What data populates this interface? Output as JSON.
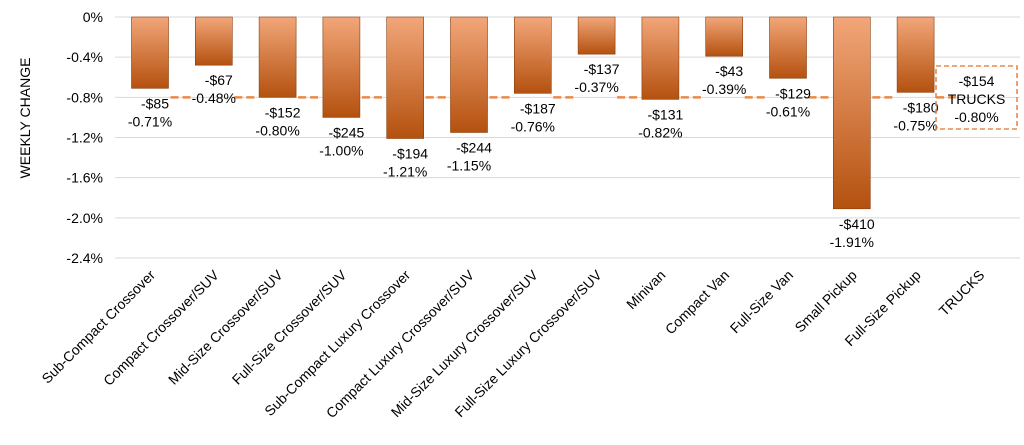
{
  "chart_data": {
    "type": "bar",
    "ylabel": "WEEKLY CHANGE",
    "ylim": [
      -2.4,
      0
    ],
    "yticks": [
      "0%",
      "-0.4%",
      "-0.8%",
      "-1.2%",
      "-1.6%",
      "-2.0%",
      "-2.4%"
    ],
    "ytick_values": [
      0,
      -0.4,
      -0.8,
      -1.2,
      -1.6,
      -2.0,
      -2.4
    ],
    "grid": true,
    "categories": [
      "Sub-Compact Crossover",
      "Compact Crossover/SUV",
      "Mid-Size Crossover/SUV",
      "Full-Size Crossover/SUV",
      "Sub-Compact Luxury Crossover",
      "Compact Luxury Crossover/SUV",
      "Mid-Size Luxury Crossover/SUV",
      "Full-Size Luxury Crossover/SUV",
      "Minivan",
      "Compact Van",
      "Full-Size Van",
      "Small Pickup",
      "Full-Size Pickup",
      "TRUCKS"
    ],
    "values": [
      -0.71,
      -0.48,
      -0.8,
      -1.0,
      -1.21,
      -1.15,
      -0.76,
      -0.37,
      -0.82,
      -0.39,
      -0.61,
      -1.91,
      -0.75,
      null
    ],
    "dollar_labels": [
      "-$85",
      "-$67",
      "-$152",
      "-$245",
      "-$194",
      "-$244",
      "-$187",
      "-$137",
      "-$131",
      "-$43",
      "-$129",
      "-$410",
      "-$180",
      "-$154"
    ],
    "percent_labels": [
      "-0.71%",
      "-0.48%",
      "-0.80%",
      "-1.00%",
      "-1.21%",
      "-1.15%",
      "-0.76%",
      "-0.37%",
      "-0.82%",
      "-0.39%",
      "-0.61%",
      "-1.91%",
      "-0.75%",
      "-0.80%"
    ],
    "reference_line": {
      "value": -0.8
    },
    "summary_box": {
      "dollar": "-$154",
      "name": "TRUCKS",
      "percent": "-0.80%"
    },
    "colors": {
      "bar_top": "#f2a679",
      "bar_bottom": "#b4510f",
      "reference": "#e88a4a",
      "grid": "#d9d9d9"
    }
  }
}
